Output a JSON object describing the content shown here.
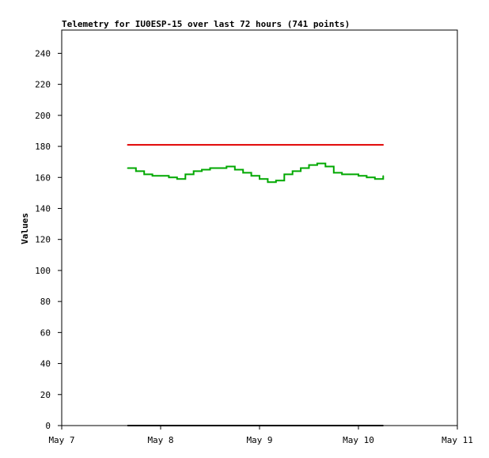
{
  "chart_data": {
    "type": "line",
    "title": "Telemetry for IU0ESP-15 over last 72 hours (741 points)",
    "ylabel": "Values",
    "xlabel": "",
    "ylim": [
      0,
      255
    ],
    "yticks": [
      0,
      20,
      40,
      60,
      80,
      100,
      120,
      140,
      160,
      180,
      200,
      220,
      240
    ],
    "xlim": [
      "May 7",
      "May 11"
    ],
    "xticks": [
      "May 7",
      "May 8",
      "May 9",
      "May 10",
      "May 11"
    ],
    "grid": false,
    "colors": {
      "red_series": "#e00000",
      "green_series": "#00a800",
      "black_series": "#000000"
    },
    "series": [
      {
        "color": "red",
        "x": [
          "May 7 16:00",
          "May 10 06:00"
        ],
        "y": [
          181,
          181
        ]
      },
      {
        "color": "green",
        "x": [
          "May 7 16:00",
          "May 7 17:00",
          "May 7 18:00",
          "May 7 20:00",
          "May 7 22:00",
          "May 8 00:00",
          "May 8 02:00",
          "May 8 04:00",
          "May 8 06:00",
          "May 8 08:00",
          "May 8 10:00",
          "May 8 12:00",
          "May 8 14:00",
          "May 8 16:00",
          "May 8 18:00",
          "May 8 20:00",
          "May 8 22:00",
          "May 9 00:00",
          "May 9 02:00",
          "May 9 04:00",
          "May 9 06:00",
          "May 9 08:00",
          "May 9 10:00",
          "May 9 12:00",
          "May 9 14:00",
          "May 9 16:00",
          "May 9 18:00",
          "May 9 20:00",
          "May 9 22:00",
          "May 10 00:00",
          "May 10 02:00",
          "May 10 04:00",
          "May 10 06:00"
        ],
        "y": [
          166,
          166,
          164,
          162,
          161,
          161,
          160,
          159,
          162,
          164,
          165,
          166,
          166,
          167,
          165,
          163,
          161,
          159,
          157,
          158,
          162,
          164,
          166,
          168,
          169,
          167,
          163,
          162,
          162,
          161,
          160,
          159,
          161
        ]
      },
      {
        "color": "black",
        "x": [
          "May 7 16:00",
          "May 10 06:00"
        ],
        "y": [
          0,
          0
        ]
      }
    ]
  }
}
